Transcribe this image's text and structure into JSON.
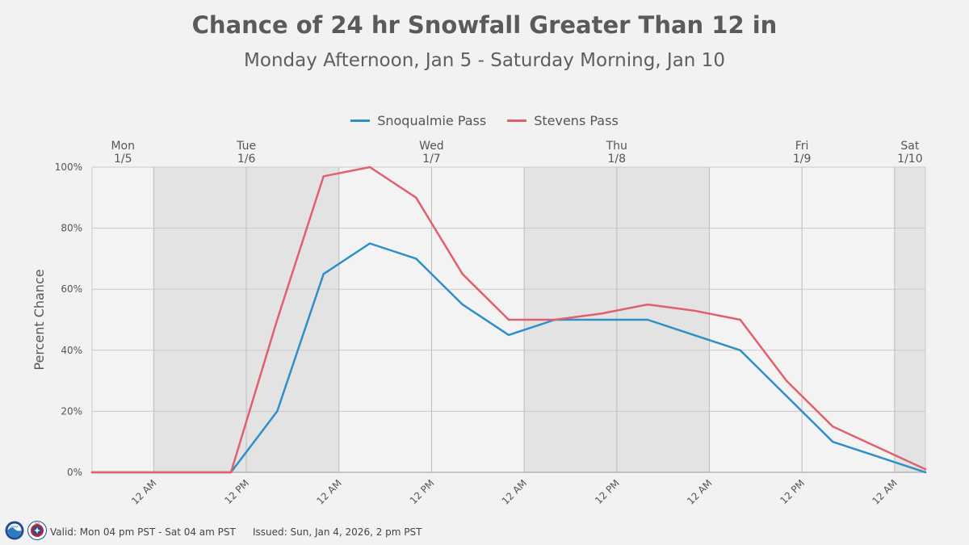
{
  "header": {
    "title": "Chance of 24 hr Snowfall Greater Than 12 in",
    "subtitle": "Monday Afternoon, Jan 5 - Saturday Morning, Jan 10"
  },
  "footer": {
    "valid": "Valid: Mon 04 pm PST - Sat 04 am PST",
    "issued": "Issued: Sun, Jan 4, 2026, 2 pm PST",
    "noaa_logo_text": "NOAA",
    "nws_logo_text": "NWS"
  },
  "colors": {
    "snoqualmie": "#2f8fc8",
    "stevens": "#e0606e",
    "night_shade": "#e3e3e3",
    "plot_bg": "#f3f3f3"
  },
  "chart_data": {
    "type": "line",
    "ylabel": "Percent Chance",
    "xlabel": "",
    "ylim": [
      0,
      100
    ],
    "xlim_hours": [
      -8,
      100
    ],
    "y_ticks": [
      0,
      20,
      40,
      60,
      80,
      100
    ],
    "y_tick_labels": [
      "0%",
      "20%",
      "40%",
      "60%",
      "80%",
      "100%"
    ],
    "x_ticks": [
      {
        "hour": 0,
        "label": "12 AM"
      },
      {
        "hour": 12,
        "label": "12 PM"
      },
      {
        "hour": 24,
        "label": "12 AM"
      },
      {
        "hour": 36,
        "label": "12 PM"
      },
      {
        "hour": 48,
        "label": "12 AM"
      },
      {
        "hour": 60,
        "label": "12 PM"
      },
      {
        "hour": 72,
        "label": "12 AM"
      },
      {
        "hour": 84,
        "label": "12 PM"
      },
      {
        "hour": 96,
        "label": "12 AM"
      }
    ],
    "day_labels": [
      {
        "hour": -4,
        "day": "Mon",
        "date": "1/5"
      },
      {
        "hour": 12,
        "day": "Tue",
        "date": "1/6"
      },
      {
        "hour": 36,
        "day": "Wed",
        "date": "1/7"
      },
      {
        "hour": 60,
        "day": "Thu",
        "date": "1/8"
      },
      {
        "hour": 84,
        "day": "Fri",
        "date": "1/9"
      },
      {
        "hour": 98,
        "day": "Sat",
        "date": "1/10"
      }
    ],
    "night_bands": [
      [
        0,
        24
      ],
      [
        48,
        72
      ],
      [
        96,
        100
      ]
    ],
    "series": [
      {
        "name": "Snoqualmie Pass",
        "color": "#2f8fc8",
        "x": [
          -8,
          10,
          16,
          22,
          28,
          34,
          40,
          46,
          52,
          58,
          64,
          70,
          76,
          82,
          88,
          94,
          100
        ],
        "values": [
          0,
          0,
          20,
          65,
          75,
          70,
          55,
          45,
          50,
          50,
          50,
          45,
          40,
          25,
          10,
          5,
          0
        ]
      },
      {
        "name": "Stevens Pass",
        "color": "#e0606e",
        "x": [
          -8,
          10,
          16,
          22,
          28,
          34,
          40,
          46,
          52,
          58,
          64,
          70,
          76,
          82,
          88,
          94,
          100
        ],
        "values": [
          0,
          0,
          50,
          97,
          100,
          90,
          65,
          50,
          50,
          52,
          55,
          53,
          50,
          30,
          15,
          8,
          1
        ]
      }
    ]
  }
}
